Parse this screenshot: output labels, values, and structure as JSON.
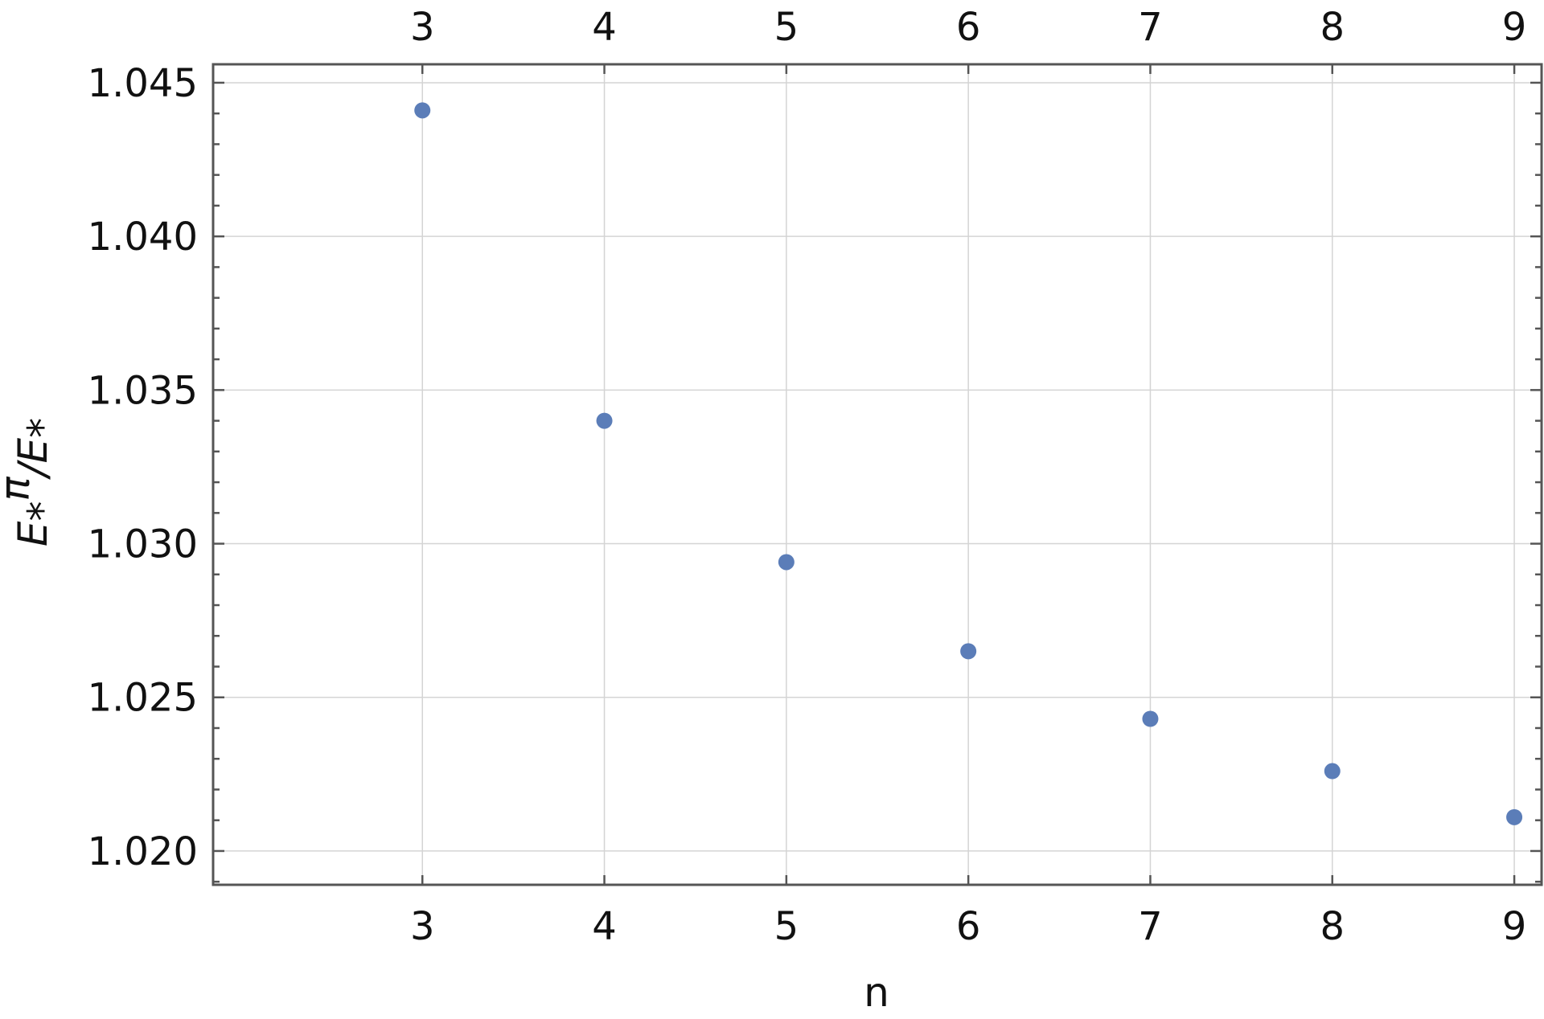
{
  "chart_data": {
    "type": "scatter",
    "title": "",
    "xlabel": "n",
    "ylabel": {
      "main": "E",
      "sub": "*",
      "sup": "π",
      "slash": "/",
      "main2": "E",
      "sub2": "*"
    },
    "x": [
      3,
      4,
      5,
      6,
      7,
      8,
      9
    ],
    "y": [
      1.0441,
      1.034,
      1.0294,
      1.0265,
      1.0243,
      1.0226,
      1.0211
    ],
    "xlim": [
      1.85,
      9.15
    ],
    "ylim": [
      1.0189,
      1.0456
    ],
    "xticks": [
      3,
      4,
      5,
      6,
      7,
      8,
      9
    ],
    "yticks": [
      1.02,
      1.025,
      1.03,
      1.035,
      1.04,
      1.045
    ],
    "ytick_labels": [
      "1.020",
      "1.025",
      "1.030",
      "1.035",
      "1.040",
      "1.045"
    ],
    "grid": true,
    "marker_color": "#5b7db8",
    "grid_color": "#d4d4d4",
    "frame_color": "#555555"
  }
}
